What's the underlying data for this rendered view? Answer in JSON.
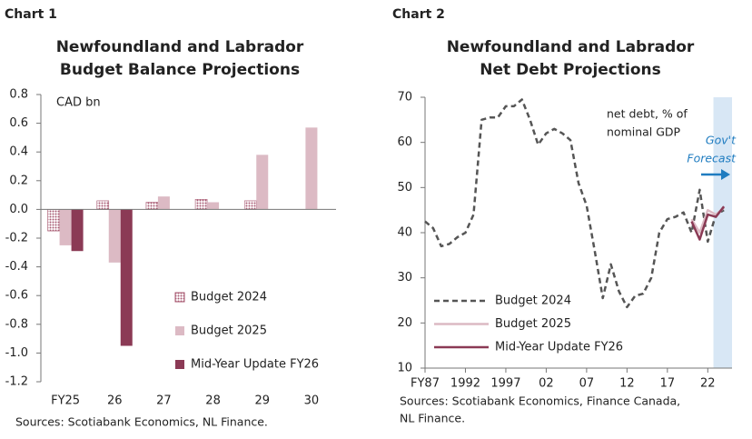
{
  "chart_data": [
    {
      "type": "bar",
      "panel_label": "Chart 1",
      "title": [
        "Newfoundland and Labrador",
        "Budget Balance Projections"
      ],
      "annotation": "CAD bn",
      "categories": [
        "FY25",
        "26",
        "27",
        "28",
        "29",
        "30"
      ],
      "series": [
        {
          "name": "Budget 2024",
          "color": "#a85a72",
          "pattern": "dots",
          "values": [
            -0.15,
            0.06,
            0.05,
            0.07,
            0.06,
            null
          ]
        },
        {
          "name": "Budget 2025",
          "color": "#dcbac4",
          "values": [
            -0.25,
            -0.37,
            0.09,
            0.05,
            0.38,
            0.57
          ]
        },
        {
          "name": "Mid-Year Update FY26",
          "color": "#8b3a55",
          "values": [
            -0.29,
            -0.95,
            null,
            null,
            null,
            null
          ]
        }
      ],
      "ylim": [
        -1.2,
        0.8
      ],
      "yticks": [
        0.8,
        0.6,
        0.4,
        0.2,
        {
          "value": 0,
          "label": "0.0"
        },
        -0.2,
        -0.4,
        -0.6,
        -0.8,
        {
          "value": -1,
          "label": "-1.0"
        },
        -1.2
      ],
      "source": [
        "Sources: Scotiabank Economics, NL Finance."
      ]
    },
    {
      "type": "line",
      "panel_label": "Chart 2",
      "title": [
        "Newfoundland and Labrador",
        "Net Debt Projections"
      ],
      "annotation": [
        "net debt, % of",
        "nominal GDP"
      ],
      "forecast_label": [
        "Gov't",
        "Forecast"
      ],
      "forecast_color": "#1f7cc0",
      "forecast_shade": [
        2022.7,
        2025
      ],
      "x": [
        1987,
        1988,
        1989,
        1990,
        1991,
        1992,
        1993,
        1994,
        1995,
        1996,
        1997,
        1998,
        1999,
        2000,
        2001,
        2002,
        2003,
        2004,
        2005,
        2006,
        2007,
        2008,
        2009,
        2010,
        2011,
        2012,
        2013,
        2014,
        2015,
        2016,
        2017,
        2018,
        2019,
        2020,
        2021,
        2022,
        2023,
        2024
      ],
      "series": [
        {
          "name": "Budget 2024",
          "color": "#555555",
          "dashed": true,
          "values": [
            42.5,
            41,
            37,
            37.5,
            39,
            40,
            44,
            65,
            65.5,
            65.5,
            68,
            68,
            69.5,
            65,
            59.5,
            62,
            63,
            62,
            60.5,
            51,
            46,
            36,
            25.5,
            33,
            27,
            23.5,
            26,
            26.5,
            30,
            40,
            43,
            43.5,
            44.5,
            40,
            49.5,
            38,
            44,
            45
          ]
        },
        {
          "name": "Budget 2025",
          "color": "#dcbac4",
          "values": [
            null,
            null,
            null,
            null,
            null,
            null,
            null,
            null,
            null,
            null,
            null,
            null,
            null,
            null,
            null,
            null,
            null,
            null,
            null,
            null,
            null,
            null,
            null,
            null,
            null,
            null,
            null,
            null,
            null,
            null,
            null,
            null,
            null,
            43,
            40,
            45,
            44,
            45.5
          ]
        },
        {
          "name": "Mid-Year Update FY26",
          "color": "#8b3a55",
          "values": [
            null,
            null,
            null,
            null,
            null,
            null,
            null,
            null,
            null,
            null,
            null,
            null,
            null,
            null,
            null,
            null,
            null,
            null,
            null,
            null,
            null,
            null,
            null,
            null,
            null,
            null,
            null,
            null,
            null,
            null,
            null,
            null,
            null,
            42.5,
            38.5,
            44,
            43.5,
            45.8
          ]
        }
      ],
      "xlim": [
        1987,
        2025
      ],
      "xticks": [
        {
          "value": 1987,
          "label": "FY87"
        },
        1992,
        1997,
        {
          "value": 2002,
          "label": "02"
        },
        {
          "value": 2007,
          "label": "07"
        },
        {
          "value": 2012,
          "label": "12"
        },
        {
          "value": 2017,
          "label": "17"
        },
        {
          "value": 2022,
          "label": "22"
        }
      ],
      "ylim": [
        10,
        70
      ],
      "yticks": [
        70,
        60,
        50,
        40,
        30,
        20,
        10
      ],
      "source": [
        "Sources: Scotiabank Economics, Finance Canada,",
        "NL Finance."
      ]
    }
  ]
}
